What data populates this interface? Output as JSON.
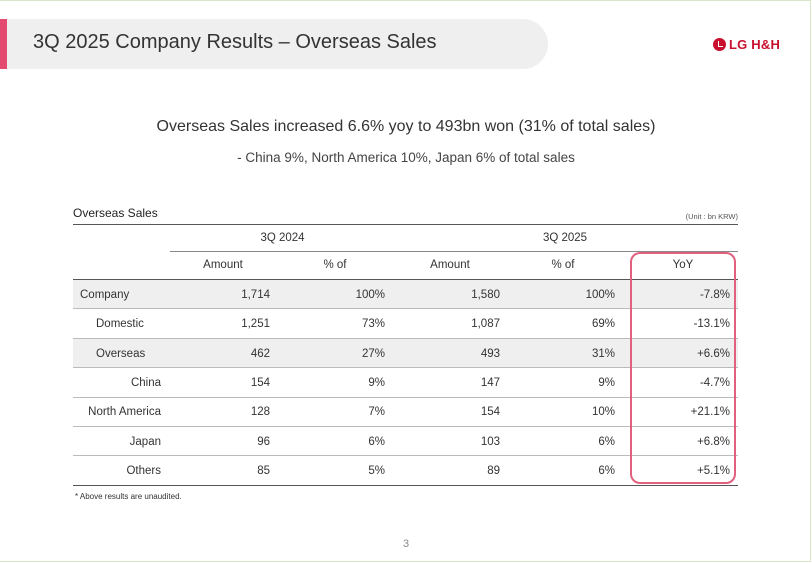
{
  "slide": {
    "title": "3Q 2025 Company Results – Overseas Sales",
    "logo_text": "LG H&H",
    "headline": "Overseas Sales increased 6.6% yoy to 493bn won (31% of total sales)",
    "subheadline": "- China 9%, North America 10%, Japan 6% of total sales",
    "accent_color": "#e34a6f",
    "page_number": "3"
  },
  "table": {
    "title": "Overseas Sales",
    "unit": "(Unit : bn KRW)",
    "group_headers": [
      "3Q 2024",
      "3Q 2025"
    ],
    "sub_headers": [
      "Amount",
      "% of",
      "Amount",
      "% of",
      "YoY"
    ],
    "rows": [
      {
        "label": "Company",
        "a24": "1,714",
        "p24": "100%",
        "a25": "1,580",
        "p25": "100%",
        "yoy": "-7.8%"
      },
      {
        "label": "Domestic",
        "a24": "1,251",
        "p24": "73%",
        "a25": "1,087",
        "p25": "69%",
        "yoy": "-13.1%"
      },
      {
        "label": "Overseas",
        "a24": "462",
        "p24": "27%",
        "a25": "493",
        "p25": "31%",
        "yoy": "+6.6%"
      },
      {
        "label": "China",
        "a24": "154",
        "p24": "9%",
        "a25": "147",
        "p25": "9%",
        "yoy": "-4.7%"
      },
      {
        "label": "North America",
        "a24": "128",
        "p24": "7%",
        "a25": "154",
        "p25": "10%",
        "yoy": "+21.1%"
      },
      {
        "label": "Japan",
        "a24": "96",
        "p24": "6%",
        "a25": "103",
        "p25": "6%",
        "yoy": "+6.8%"
      },
      {
        "label": "Others",
        "a24": "85",
        "p24": "5%",
        "a25": "89",
        "p25": "6%",
        "yoy": "+5.1%"
      }
    ],
    "highlight_color": "#e0607e",
    "footnote": "* Above results are unaudited."
  }
}
